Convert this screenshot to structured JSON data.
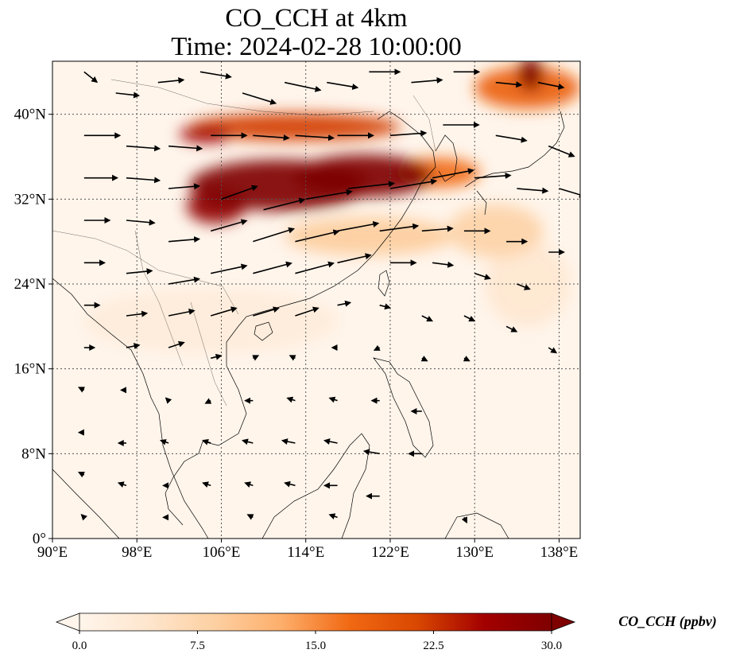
{
  "title": {
    "line1": "CO_CCH at 4km",
    "line2": "Time: 2024-02-28 10:00:00"
  },
  "map": {
    "lon_range": [
      90,
      140
    ],
    "lat_range": [
      0,
      45
    ],
    "lon_ticks": [
      {
        "value": 90,
        "label": "90°E"
      },
      {
        "value": 98,
        "label": "98°E"
      },
      {
        "value": 106,
        "label": "106°E"
      },
      {
        "value": 114,
        "label": "114°E"
      },
      {
        "value": 122,
        "label": "122°E"
      },
      {
        "value": 130,
        "label": "130°E"
      },
      {
        "value": 138,
        "label": "138°E"
      }
    ],
    "lat_ticks": [
      {
        "value": 0,
        "label": "0°"
      },
      {
        "value": 8,
        "label": "8°N"
      },
      {
        "value": 16,
        "label": "16°N"
      },
      {
        "value": 24,
        "label": "24°N"
      },
      {
        "value": 32,
        "label": "32°N"
      },
      {
        "value": 40,
        "label": "40°N"
      }
    ],
    "gridlines": true,
    "field": {
      "variable": "CO_CCH",
      "blobs": [
        {
          "lon": 111.5,
          "lat": 33.3,
          "rlon": 8.5,
          "rlat": 2.4,
          "value": 30
        },
        {
          "lon": 119.5,
          "lat": 34.2,
          "rlon": 6.5,
          "rlat": 2.0,
          "value": 30
        },
        {
          "lon": 105.5,
          "lat": 31.3,
          "rlon": 2.8,
          "rlat": 1.6,
          "value": 28
        },
        {
          "lon": 113.0,
          "lat": 38.8,
          "rlon": 10.0,
          "rlat": 1.3,
          "value": 22
        },
        {
          "lon": 104.5,
          "lat": 38.1,
          "rlon": 2.5,
          "rlat": 0.8,
          "value": 26
        },
        {
          "lon": 135.0,
          "lat": 42.5,
          "rlon": 5.0,
          "rlat": 2.0,
          "value": 18
        },
        {
          "lon": 135.3,
          "lat": 43.8,
          "rlon": 1.2,
          "rlat": 1.6,
          "value": 30
        },
        {
          "lon": 126.5,
          "lat": 34.5,
          "rlon": 4.0,
          "rlat": 1.4,
          "value": 17
        },
        {
          "lon": 120.0,
          "lat": 28.5,
          "rlon": 8.0,
          "rlat": 1.8,
          "value": 9
        },
        {
          "lon": 132.0,
          "lat": 29.0,
          "rlon": 4.5,
          "rlat": 2.5,
          "value": 8
        },
        {
          "lon": 135.0,
          "lat": 24.0,
          "rlon": 4.0,
          "rlat": 4.0,
          "value": 4
        },
        {
          "lon": 105.0,
          "lat": 20.5,
          "rlon": 12.0,
          "rlat": 3.0,
          "value": 2.5
        }
      ]
    },
    "wind_vectors": [
      {
        "lon": 93,
        "lat": 44,
        "u": 5,
        "v": -4
      },
      {
        "lon": 96,
        "lat": 42,
        "u": 9,
        "v": -1
      },
      {
        "lon": 100,
        "lat": 43,
        "u": 10,
        "v": 1
      },
      {
        "lon": 104,
        "lat": 44,
        "u": 12,
        "v": -2
      },
      {
        "lon": 108,
        "lat": 42,
        "u": 13,
        "v": -4
      },
      {
        "lon": 112,
        "lat": 43,
        "u": 14,
        "v": -3
      },
      {
        "lon": 116,
        "lat": 43,
        "u": 12,
        "v": -2
      },
      {
        "lon": 120,
        "lat": 44,
        "u": 12,
        "v": 0
      },
      {
        "lon": 124,
        "lat": 43,
        "u": 12,
        "v": 1
      },
      {
        "lon": 128,
        "lat": 44,
        "u": 10,
        "v": 0
      },
      {
        "lon": 132,
        "lat": 43,
        "u": 10,
        "v": -1
      },
      {
        "lon": 136,
        "lat": 43,
        "u": 10,
        "v": -2
      },
      {
        "lon": 93,
        "lat": 38,
        "u": 14,
        "v": 0
      },
      {
        "lon": 97,
        "lat": 37,
        "u": 13,
        "v": -1
      },
      {
        "lon": 101,
        "lat": 37,
        "u": 13,
        "v": -1
      },
      {
        "lon": 105,
        "lat": 38,
        "u": 14,
        "v": 0
      },
      {
        "lon": 109,
        "lat": 38,
        "u": 14,
        "v": -1
      },
      {
        "lon": 113,
        "lat": 38,
        "u": 15,
        "v": -1
      },
      {
        "lon": 117,
        "lat": 38,
        "u": 14,
        "v": 0
      },
      {
        "lon": 122,
        "lat": 38,
        "u": 14,
        "v": 1
      },
      {
        "lon": 127,
        "lat": 39,
        "u": 14,
        "v": 0
      },
      {
        "lon": 132,
        "lat": 38,
        "u": 12,
        "v": -2
      },
      {
        "lon": 137,
        "lat": 37,
        "u": 10,
        "v": -4
      },
      {
        "lon": 93,
        "lat": 34,
        "u": 13,
        "v": 0
      },
      {
        "lon": 97,
        "lat": 34,
        "u": 13,
        "v": -1
      },
      {
        "lon": 101,
        "lat": 33,
        "u": 12,
        "v": 1
      },
      {
        "lon": 106,
        "lat": 32,
        "u": 14,
        "v": 5
      },
      {
        "lon": 110,
        "lat": 31,
        "u": 16,
        "v": 4
      },
      {
        "lon": 114,
        "lat": 32,
        "u": 18,
        "v": 3
      },
      {
        "lon": 118,
        "lat": 33,
        "u": 18,
        "v": 2
      },
      {
        "lon": 122,
        "lat": 33,
        "u": 18,
        "v": 3
      },
      {
        "lon": 126,
        "lat": 34,
        "u": 16,
        "v": 3
      },
      {
        "lon": 130,
        "lat": 34,
        "u": 14,
        "v": 1
      },
      {
        "lon": 134,
        "lat": 33,
        "u": 12,
        "v": -1
      },
      {
        "lon": 138,
        "lat": 33,
        "u": 10,
        "v": -3
      },
      {
        "lon": 93,
        "lat": 30,
        "u": 10,
        "v": 0
      },
      {
        "lon": 97,
        "lat": 30,
        "u": 11,
        "v": -1
      },
      {
        "lon": 101,
        "lat": 28,
        "u": 12,
        "v": 1
      },
      {
        "lon": 105,
        "lat": 29,
        "u": 14,
        "v": 4
      },
      {
        "lon": 109,
        "lat": 28,
        "u": 16,
        "v": 5
      },
      {
        "lon": 113,
        "lat": 28,
        "u": 17,
        "v": 4
      },
      {
        "lon": 117,
        "lat": 29,
        "u": 16,
        "v": 3
      },
      {
        "lon": 121,
        "lat": 29,
        "u": 15,
        "v": 2
      },
      {
        "lon": 125,
        "lat": 29,
        "u": 12,
        "v": 1
      },
      {
        "lon": 129,
        "lat": 29,
        "u": 10,
        "v": 0
      },
      {
        "lon": 133,
        "lat": 28,
        "u": 8,
        "v": 0
      },
      {
        "lon": 137,
        "lat": 27,
        "u": 6,
        "v": 0
      },
      {
        "lon": 93,
        "lat": 26,
        "u": 8,
        "v": 0
      },
      {
        "lon": 97,
        "lat": 25,
        "u": 10,
        "v": 1
      },
      {
        "lon": 101,
        "lat": 24,
        "u": 12,
        "v": 2
      },
      {
        "lon": 105,
        "lat": 25,
        "u": 14,
        "v": 3
      },
      {
        "lon": 109,
        "lat": 25,
        "u": 15,
        "v": 4
      },
      {
        "lon": 113,
        "lat": 25,
        "u": 15,
        "v": 4
      },
      {
        "lon": 117,
        "lat": 26,
        "u": 13,
        "v": 3
      },
      {
        "lon": 122,
        "lat": 26,
        "u": 10,
        "v": 0
      },
      {
        "lon": 126,
        "lat": 26,
        "u": 8,
        "v": -1
      },
      {
        "lon": 130,
        "lat": 25,
        "u": 6,
        "v": -2
      },
      {
        "lon": 134,
        "lat": 24,
        "u": 5,
        "v": -2
      },
      {
        "lon": 93,
        "lat": 22,
        "u": 6,
        "v": 0
      },
      {
        "lon": 97,
        "lat": 21,
        "u": 8,
        "v": 1
      },
      {
        "lon": 101,
        "lat": 21,
        "u": 10,
        "v": 2
      },
      {
        "lon": 105,
        "lat": 21,
        "u": 10,
        "v": 3
      },
      {
        "lon": 109,
        "lat": 21,
        "u": 10,
        "v": 3
      },
      {
        "lon": 113,
        "lat": 21,
        "u": 9,
        "v": 3
      },
      {
        "lon": 117,
        "lat": 22,
        "u": 5,
        "v": 1
      },
      {
        "lon": 121,
        "lat": 22,
        "u": 4,
        "v": -1
      },
      {
        "lon": 125,
        "lat": 21,
        "u": 4,
        "v": -2
      },
      {
        "lon": 129,
        "lat": 21,
        "u": 4,
        "v": -2
      },
      {
        "lon": 133,
        "lat": 20,
        "u": 4,
        "v": -2
      },
      {
        "lon": 137,
        "lat": 18,
        "u": 3,
        "v": -2
      },
      {
        "lon": 93,
        "lat": 18,
        "u": 4,
        "v": 0
      },
      {
        "lon": 97,
        "lat": 18,
        "u": 5,
        "v": 1
      },
      {
        "lon": 101,
        "lat": 18,
        "u": 6,
        "v": 2
      },
      {
        "lon": 105,
        "lat": 17,
        "u": 4,
        "v": 1
      },
      {
        "lon": 109,
        "lat": 17,
        "u": 2,
        "v": 1
      },
      {
        "lon": 113,
        "lat": 17,
        "u": -2,
        "v": 1
      },
      {
        "lon": 117,
        "lat": 18,
        "u": -2,
        "v": 0
      },
      {
        "lon": 121,
        "lat": 18,
        "u": -2,
        "v": -1
      },
      {
        "lon": 125,
        "lat": 17,
        "u": 2,
        "v": -1
      },
      {
        "lon": 129,
        "lat": 17,
        "u": 2,
        "v": -1
      },
      {
        "lon": 93,
        "lat": 14,
        "u": -2,
        "v": 1
      },
      {
        "lon": 97,
        "lat": 14,
        "u": -2,
        "v": 0
      },
      {
        "lon": 101,
        "lat": 13,
        "u": -1,
        "v": 1
      },
      {
        "lon": 105,
        "lat": 13,
        "u": -2,
        "v": -1
      },
      {
        "lon": 109,
        "lat": 13,
        "u": -3,
        "v": 0
      },
      {
        "lon": 113,
        "lat": 13,
        "u": -3,
        "v": 1
      },
      {
        "lon": 117,
        "lat": 13,
        "u": -3,
        "v": 1
      },
      {
        "lon": 121,
        "lat": 13,
        "u": -3,
        "v": 0
      },
      {
        "lon": 125,
        "lat": 12,
        "u": -4,
        "v": 0
      },
      {
        "lon": 93,
        "lat": 10,
        "u": -2,
        "v": 0
      },
      {
        "lon": 97,
        "lat": 9,
        "u": -3,
        "v": 0
      },
      {
        "lon": 101,
        "lat": 9,
        "u": -3,
        "v": 1
      },
      {
        "lon": 105,
        "lat": 9,
        "u": -3,
        "v": 1
      },
      {
        "lon": 109,
        "lat": 9,
        "u": -4,
        "v": 1
      },
      {
        "lon": 113,
        "lat": 9,
        "u": -5,
        "v": 1
      },
      {
        "lon": 117,
        "lat": 9,
        "u": -5,
        "v": 1
      },
      {
        "lon": 121,
        "lat": 8,
        "u": -6,
        "v": 1
      },
      {
        "lon": 125,
        "lat": 8,
        "u": -5,
        "v": 0
      },
      {
        "lon": 93,
        "lat": 6,
        "u": -2,
        "v": 1
      },
      {
        "lon": 97,
        "lat": 5,
        "u": -3,
        "v": 1
      },
      {
        "lon": 101,
        "lat": 5,
        "u": -2,
        "v": 0
      },
      {
        "lon": 105,
        "lat": 5,
        "u": -3,
        "v": 1
      },
      {
        "lon": 109,
        "lat": 5,
        "u": -3,
        "v": 1
      },
      {
        "lon": 113,
        "lat": 5,
        "u": -4,
        "v": 1
      },
      {
        "lon": 117,
        "lat": 5,
        "u": -5,
        "v": 0
      },
      {
        "lon": 121,
        "lat": 4,
        "u": -5,
        "v": 0
      },
      {
        "lon": 93,
        "lat": 2,
        "u": -1,
        "v": 1
      },
      {
        "lon": 101,
        "lat": 2,
        "u": -2,
        "v": 0
      },
      {
        "lon": 109,
        "lat": 2,
        "u": -2,
        "v": 1
      },
      {
        "lon": 117,
        "lat": 2,
        "u": -3,
        "v": 1
      },
      {
        "lon": 129,
        "lat": 2,
        "u": 1,
        "v": -2
      }
    ]
  },
  "colorbar": {
    "label": "CO_CCH (ppbv)",
    "min": 0,
    "max": 30,
    "ticks": [
      {
        "value": 0,
        "label": "0.0"
      },
      {
        "value": 7.5,
        "label": "7.5"
      },
      {
        "value": 15,
        "label": "15.0"
      },
      {
        "value": 22.5,
        "label": "22.5"
      },
      {
        "value": 30,
        "label": "30.0"
      }
    ],
    "colors": [
      "#fff5eb",
      "#fee6ce",
      "#fdd0a2",
      "#fdae6b",
      "#f16913",
      "#d94801",
      "#a30000",
      "#7f0000"
    ]
  }
}
